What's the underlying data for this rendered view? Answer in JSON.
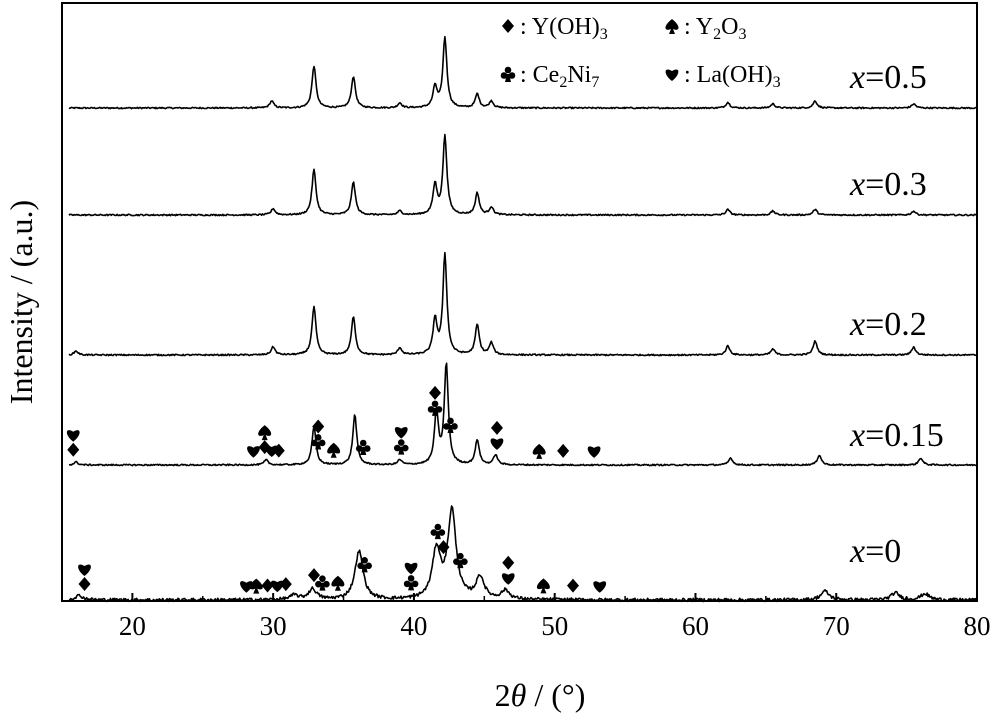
{
  "chart_data": {
    "type": "line",
    "xlabel_prefix": "2",
    "xlabel_symbol": "θ",
    "xlabel_suffix": " / (°)",
    "ylabel": "Intensity / (a.u.)",
    "xlim": [
      15,
      80
    ],
    "x_ticks": [
      20,
      30,
      40,
      50,
      60,
      70,
      80
    ],
    "y_ticks_visible": false,
    "legend": {
      "placement": "top-right",
      "entries": [
        {
          "marker": "diamond",
          "label": ": Y(OH)",
          "sub": "3",
          "suffix": ""
        },
        {
          "marker": "spade",
          "label": ": Y",
          "sub": "2",
          "suffix": "O",
          "sub2": "3"
        },
        {
          "marker": "club",
          "label": ": Ce",
          "sub": "2",
          "suffix": "Ni",
          "sub2": "7"
        },
        {
          "marker": "heart",
          "label": ": La(OH)",
          "sub": "3",
          "suffix": ""
        }
      ]
    },
    "series": [
      {
        "name_var": "x",
        "name_val": "=0.5",
        "peaks": [
          [
            29.9,
            0.1
          ],
          [
            32.9,
            0.6
          ],
          [
            35.7,
            0.45
          ],
          [
            39.0,
            0.07
          ],
          [
            41.5,
            0.3
          ],
          [
            42.2,
            1.0
          ],
          [
            44.5,
            0.2
          ],
          [
            45.5,
            0.1
          ],
          [
            62.3,
            0.08
          ],
          [
            65.5,
            0.06
          ],
          [
            68.5,
            0.1
          ],
          [
            75.5,
            0.06
          ]
        ]
      },
      {
        "name_var": "x",
        "name_val": "=0.3",
        "peaks": [
          [
            30.0,
            0.08
          ],
          [
            32.9,
            0.58
          ],
          [
            35.7,
            0.42
          ],
          [
            39.0,
            0.05
          ],
          [
            41.5,
            0.38
          ],
          [
            42.2,
            1.0
          ],
          [
            44.5,
            0.28
          ],
          [
            45.5,
            0.1
          ],
          [
            62.3,
            0.07
          ],
          [
            65.5,
            0.05
          ],
          [
            68.5,
            0.07
          ],
          [
            75.5,
            0.05
          ]
        ]
      },
      {
        "name_var": "x",
        "name_val": "=0.2",
        "peaks": [
          [
            16.0,
            0.04
          ],
          [
            30.0,
            0.08
          ],
          [
            32.9,
            0.48
          ],
          [
            35.7,
            0.38
          ],
          [
            39.0,
            0.07
          ],
          [
            41.5,
            0.35
          ],
          [
            42.2,
            1.0
          ],
          [
            44.5,
            0.3
          ],
          [
            45.5,
            0.12
          ],
          [
            62.3,
            0.09
          ],
          [
            65.5,
            0.06
          ],
          [
            68.5,
            0.14
          ],
          [
            75.5,
            0.08
          ]
        ]
      },
      {
        "name_var": "x",
        "name_val": "=0.15",
        "peaks": [
          [
            16.0,
            0.03
          ],
          [
            29.5,
            0.05
          ],
          [
            32.9,
            0.38
          ],
          [
            35.8,
            0.5
          ],
          [
            39.0,
            0.05
          ],
          [
            41.6,
            0.52
          ],
          [
            42.3,
            1.0
          ],
          [
            44.5,
            0.25
          ],
          [
            45.8,
            0.1
          ],
          [
            62.5,
            0.07
          ],
          [
            68.8,
            0.1
          ],
          [
            76.0,
            0.07
          ]
        ]
      },
      {
        "name_var": "x",
        "name_val": "=0",
        "peaks": [
          [
            16.2,
            0.05
          ],
          [
            31.5,
            0.05
          ],
          [
            32.8,
            0.12
          ],
          [
            36.1,
            0.55
          ],
          [
            41.6,
            0.55
          ],
          [
            42.7,
            1.0
          ],
          [
            44.7,
            0.25
          ],
          [
            46.5,
            0.1
          ],
          [
            69.2,
            0.1
          ],
          [
            74.2,
            0.08
          ],
          [
            76.3,
            0.07
          ]
        ]
      }
    ],
    "annotations": [
      {
        "series": 3,
        "x": 15.8,
        "stack": [
          "heart",
          "diamond"
        ]
      },
      {
        "series": 3,
        "x": 28.6,
        "stack": [
          "heart"
        ]
      },
      {
        "series": 3,
        "x": 29.4,
        "stack": [
          "spade",
          "diamond"
        ]
      },
      {
        "series": 3,
        "x": 29.9,
        "stack": [
          "heart"
        ]
      },
      {
        "series": 3,
        "x": 30.4,
        "stack": [
          "diamond"
        ]
      },
      {
        "series": 3,
        "x": 33.2,
        "stack": [
          "diamond",
          "club"
        ]
      },
      {
        "series": 3,
        "x": 34.3,
        "stack": [
          "spade"
        ]
      },
      {
        "series": 3,
        "x": 36.4,
        "stack": [
          "club"
        ]
      },
      {
        "series": 3,
        "x": 39.1,
        "stack": [
          "heart",
          "club"
        ]
      },
      {
        "series": 3,
        "x": 41.5,
        "stack": [
          "diamond",
          "club"
        ]
      },
      {
        "series": 3,
        "x": 42.6,
        "stack": [
          "club"
        ]
      },
      {
        "series": 3,
        "x": 45.9,
        "stack": [
          "diamond",
          "heart"
        ]
      },
      {
        "series": 3,
        "x": 48.9,
        "stack": [
          "spade"
        ]
      },
      {
        "series": 3,
        "x": 50.6,
        "stack": [
          "diamond"
        ]
      },
      {
        "series": 3,
        "x": 52.8,
        "stack": [
          "heart"
        ]
      },
      {
        "series": 4,
        "x": 16.6,
        "stack": [
          "heart",
          "diamond"
        ]
      },
      {
        "series": 4,
        "x": 28.1,
        "stack": [
          "heart"
        ]
      },
      {
        "series": 4,
        "x": 28.8,
        "stack": [
          "spade"
        ]
      },
      {
        "series": 4,
        "x": 29.6,
        "stack": [
          "diamond"
        ]
      },
      {
        "series": 4,
        "x": 30.3,
        "stack": [
          "heart"
        ]
      },
      {
        "series": 4,
        "x": 30.9,
        "stack": [
          "diamond"
        ]
      },
      {
        "series": 4,
        "x": 32.9,
        "stack": [
          "diamond"
        ]
      },
      {
        "series": 4,
        "x": 33.5,
        "stack": [
          "club"
        ]
      },
      {
        "series": 4,
        "x": 34.6,
        "stack": [
          "spade"
        ]
      },
      {
        "series": 4,
        "x": 36.5,
        "stack": [
          "club"
        ]
      },
      {
        "series": 4,
        "x": 39.8,
        "stack": [
          "heart",
          "club"
        ]
      },
      {
        "series": 4,
        "x": 41.7,
        "stack": [
          "club"
        ]
      },
      {
        "series": 4,
        "x": 42.1,
        "stack": [
          "diamond"
        ]
      },
      {
        "series": 4,
        "x": 43.3,
        "stack": [
          "club"
        ]
      },
      {
        "series": 4,
        "x": 46.7,
        "stack": [
          "diamond",
          "heart"
        ]
      },
      {
        "series": 4,
        "x": 49.2,
        "stack": [
          "spade"
        ]
      },
      {
        "series": 4,
        "x": 51.3,
        "stack": [
          "diamond"
        ]
      },
      {
        "series": 4,
        "x": 53.2,
        "stack": [
          "heart"
        ]
      }
    ]
  }
}
